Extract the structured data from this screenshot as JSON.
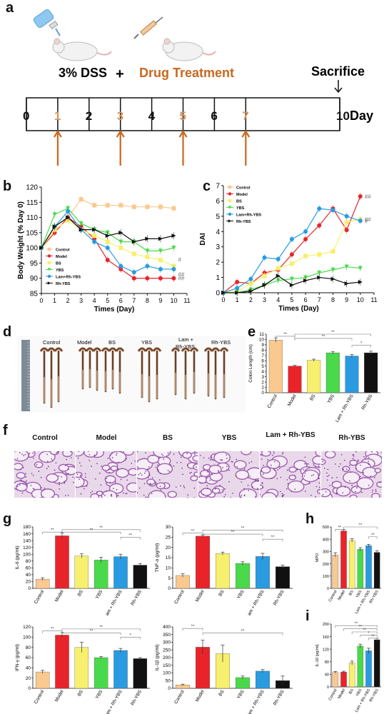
{
  "panels": {
    "a": "a",
    "b": "b",
    "c": "c",
    "d": "d",
    "e": "e",
    "f": "f",
    "g": "g",
    "h": "h",
    "i": "i"
  },
  "timeline": {
    "dss": "3% DSS",
    "plus": "+",
    "drug": "Drug Treatment",
    "sacrifice": "Sacrifice",
    "ticks": [
      "0",
      "1",
      "2",
      "3",
      "4",
      "5",
      "6",
      "7",
      "10"
    ],
    "dosing_days": [
      "1",
      "3",
      "5",
      "7"
    ],
    "unit": "Day"
  },
  "groups": [
    "Control",
    "Model",
    "BS",
    "YBS",
    "Lam+Rh-YBS",
    "Rh-YBS"
  ],
  "group_colors": [
    "#f9c98f",
    "#e8242a",
    "#f7ef6e",
    "#4ad94a",
    "#2a9be0",
    "#111111"
  ],
  "photo_labels": [
    "Control",
    "Model",
    "BS",
    "YBS",
    "Lam + Rh-YBS",
    "Rh-YBS"
  ],
  "histo_labels": [
    "Control",
    "Model",
    "BS",
    "YBS",
    "Lam + Rh-YBS",
    "Rh-YBS"
  ],
  "chart_data": [
    {
      "id": "b",
      "type": "line",
      "xlabel": "Times (Day)",
      "ylabel": "Body Weight (% Day 0)",
      "x": [
        0,
        1,
        2,
        3,
        4,
        5,
        6,
        7,
        8,
        9,
        10
      ],
      "xlim": [
        0,
        11
      ],
      "ylim": [
        85,
        120
      ],
      "xticks": [
        "0",
        "1",
        "2",
        "3",
        "4",
        "5",
        "6",
        "7",
        "8",
        "9",
        "10",
        "11"
      ],
      "yticks": [
        "85",
        "90",
        "95",
        "100",
        "105",
        "110",
        "115",
        "120"
      ],
      "legend": [
        "Control",
        "Model",
        "BS",
        "YBS",
        "Lam+Rh-YBS",
        "Rh-YBS"
      ],
      "annotations": [
        "#",
        "##",
        "##"
      ],
      "series": [
        {
          "name": "Control",
          "values": [
            100,
            107,
            110,
            116,
            114,
            114,
            114,
            113.5,
            113.5,
            113.5,
            113
          ]
        },
        {
          "name": "Model",
          "values": [
            100,
            105,
            110,
            107,
            103,
            96,
            93,
            90,
            90,
            90,
            90
          ]
        },
        {
          "name": "BS",
          "values": [
            100,
            106,
            109,
            106,
            104,
            102,
            100,
            98,
            97,
            96,
            94
          ]
        },
        {
          "name": "YBS",
          "values": [
            100,
            111,
            113,
            108,
            106,
            105,
            102,
            102,
            99,
            99,
            100
          ]
        },
        {
          "name": "Lam+Rh-YBS",
          "values": [
            100,
            107,
            112,
            106,
            102,
            100,
            94,
            92,
            94,
            93,
            93
          ]
        },
        {
          "name": "Rh-YBS",
          "values": [
            100,
            107,
            110,
            106,
            106,
            104,
            105,
            102,
            103,
            103,
            104
          ]
        }
      ]
    },
    {
      "id": "c",
      "type": "line",
      "xlabel": "Times (Day)",
      "ylabel": "DAI",
      "x": [
        0,
        1,
        2,
        3,
        4,
        5,
        6,
        7,
        8,
        9,
        10
      ],
      "xlim": [
        0,
        11
      ],
      "ylim": [
        0,
        7
      ],
      "xticks": [
        "0",
        "1",
        "2",
        "3",
        "4",
        "5",
        "6",
        "7",
        "8",
        "9",
        "10",
        "11"
      ],
      "yticks": [
        "0",
        "1",
        "2",
        "3",
        "4",
        "5",
        "6",
        "7"
      ],
      "legend": [
        "Control",
        "Model",
        "BS",
        "YBS",
        "Lam+Rh-YBS",
        "Rh-YBS"
      ],
      "annotations": [
        "##",
        "##",
        "#"
      ],
      "series": [
        {
          "name": "Control",
          "values": [
            0,
            0,
            0,
            0,
            0,
            0,
            0,
            0,
            0,
            0,
            0
          ]
        },
        {
          "name": "Model",
          "values": [
            0,
            0.7,
            0.6,
            1.3,
            1.5,
            2.5,
            3.5,
            4.4,
            5.5,
            4.1,
            6.3
          ]
        },
        {
          "name": "BS",
          "values": [
            0,
            0.1,
            0.6,
            1.1,
            1.6,
            1.9,
            2.4,
            2.5,
            2.7,
            4.6,
            4.8
          ]
        },
        {
          "name": "YBS",
          "values": [
            0,
            0,
            0.2,
            0.5,
            0.8,
            0.9,
            1.0,
            1.3,
            1.5,
            1.7,
            1.6
          ]
        },
        {
          "name": "Lam+Rh-YBS",
          "values": [
            0,
            0.3,
            0.9,
            2.3,
            2.2,
            3.5,
            4.0,
            5.5,
            5.4,
            5.0,
            4.7
          ]
        },
        {
          "name": "Rh-YBS",
          "values": [
            0,
            0,
            0.1,
            0.5,
            1.1,
            0.5,
            0.8,
            1.0,
            0.9,
            0.6,
            0.7
          ]
        }
      ]
    },
    {
      "id": "e",
      "type": "bar",
      "ylabel": "Colon Length (cm)",
      "ylim": [
        0,
        11
      ],
      "yticks": [
        "0",
        "1",
        "2",
        "3",
        "4",
        "5",
        "6",
        "7",
        "8",
        "9",
        "10",
        "11"
      ],
      "categories": [
        "Control",
        "Model",
        "BS",
        "YBS",
        "Lam + Rh-YBS",
        "Rh-YBS"
      ],
      "values": [
        9.9,
        5.0,
        6.1,
        7.5,
        6.9,
        7.5
      ],
      "errors": [
        0.4,
        0.15,
        0.2,
        0.2,
        0.3,
        0.3
      ],
      "sig": [
        "**",
        "**",
        "**",
        "*"
      ]
    },
    {
      "id": "g1",
      "type": "bar",
      "ylabel": "IL-6 (pg/ml)",
      "ylim": [
        0,
        180
      ],
      "yticks": [
        "0",
        "20",
        "40",
        "60",
        "80",
        "100",
        "120",
        "140",
        "160",
        "180"
      ],
      "categories": [
        "Control",
        "Model",
        "BS",
        "YBS",
        "Lam + Rh-YBS",
        "Rh-YBS"
      ],
      "values": [
        27,
        154,
        95,
        83,
        93,
        68
      ],
      "errors": [
        4,
        8,
        6,
        8,
        7,
        5
      ],
      "sig": [
        "**",
        "**",
        "**",
        "**"
      ]
    },
    {
      "id": "g2",
      "type": "bar",
      "ylabel": "TNF-α (pg/ml)",
      "ylim": [
        0,
        30
      ],
      "yticks": [
        "0",
        "5",
        "10",
        "15",
        "20",
        "25",
        "30"
      ],
      "categories": [
        "Control",
        "Model",
        "BS",
        "YBS",
        "Lam + Rh-YBS",
        "Rh-YBS"
      ],
      "values": [
        6.3,
        25.5,
        17,
        12.2,
        15.6,
        10.6
      ],
      "errors": [
        0.8,
        0.6,
        0.7,
        0.8,
        1.5,
        0.8
      ],
      "sig": [
        "**",
        "**",
        "**",
        "**"
      ]
    },
    {
      "id": "g3",
      "type": "bar",
      "ylabel": "IFN-γ (pg/ml)",
      "ylim": [
        0,
        120
      ],
      "yticks": [
        "0",
        "20",
        "40",
        "60",
        "80",
        "100",
        "120"
      ],
      "categories": [
        "Control",
        "Model",
        "BS",
        "YBS",
        "Lam + Rh-YBS",
        "Rh-YBS"
      ],
      "values": [
        32,
        104,
        80,
        60,
        74,
        58
      ],
      "errors": [
        3,
        5,
        10,
        2,
        4,
        2
      ],
      "sig": [
        "**",
        "**",
        "**",
        "*"
      ]
    },
    {
      "id": "g4",
      "type": "bar",
      "ylabel": "IL-1β (pg/ml)",
      "ylim": [
        0,
        400
      ],
      "yticks": [
        "0",
        "50",
        "100",
        "150",
        "200",
        "250",
        "300",
        "350",
        "400"
      ],
      "categories": [
        "Control",
        "Model",
        "BS",
        "YBS",
        "Lam + Rh-YBS",
        "Rh-YBS"
      ],
      "values": [
        22,
        268,
        226,
        70,
        112,
        50
      ],
      "errors": [
        5,
        45,
        55,
        10,
        10,
        30
      ],
      "sig": [
        "**",
        "**"
      ]
    },
    {
      "id": "h",
      "type": "bar",
      "ylabel": "MPO",
      "ylim": [
        0,
        500
      ],
      "yticks": [
        "0",
        "100",
        "200",
        "300",
        "400",
        "500"
      ],
      "categories": [
        "Control",
        "Model",
        "BS",
        "YBS",
        "Lam + Rh-YBS",
        "Rh-YBS"
      ],
      "values": [
        272,
        468,
        390,
        318,
        348,
        293
      ],
      "errors": [
        18,
        12,
        14,
        13,
        10,
        14
      ],
      "sig": [
        "**",
        "**",
        "**"
      ]
    },
    {
      "id": "i",
      "type": "bar",
      "ylabel": "IL-10 (pg/ml)",
      "ylim": [
        0,
        200
      ],
      "yticks": [
        "0",
        "40",
        "80",
        "120",
        "160",
        "200"
      ],
      "categories": [
        "Control",
        "Model",
        "BS",
        "YBS",
        "Lam + Rh-YBS",
        "Rh-YBS"
      ],
      "values": [
        46,
        47,
        76,
        130,
        115,
        150
      ],
      "errors": [
        3,
        3,
        6,
        6,
        8,
        5
      ],
      "sig": [
        "**",
        "**",
        "**",
        "*",
        "**"
      ]
    }
  ]
}
